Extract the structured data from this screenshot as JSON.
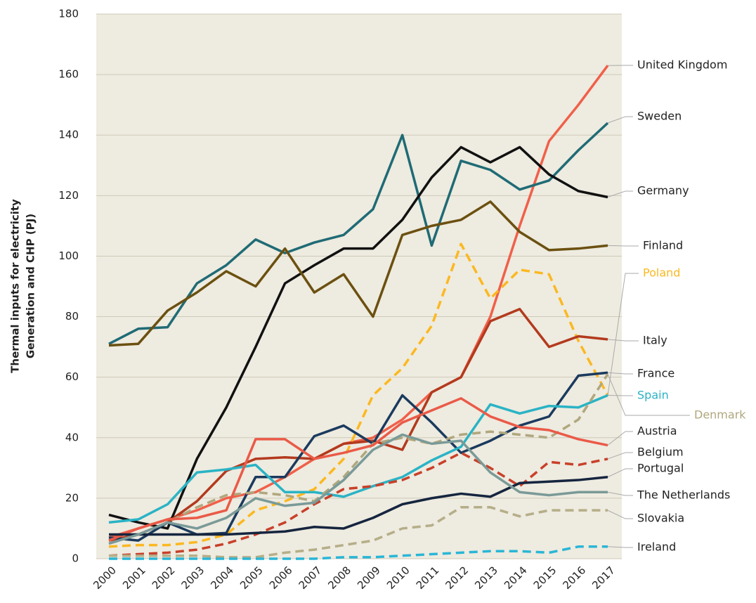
{
  "chart_data": {
    "type": "line",
    "y_label": [
      "Thermal inputs for electricity",
      "Generation and CHP (PJ)"
    ],
    "categories": [
      "2000",
      "2001",
      "2002",
      "2003",
      "2004",
      "2005",
      "2006",
      "2007",
      "2008",
      "2009",
      "2010",
      "2011",
      "2012",
      "2013",
      "2014",
      "2015",
      "2016",
      "2017"
    ],
    "ylim": [
      0,
      180
    ],
    "yticks": [
      0,
      20,
      40,
      60,
      80,
      100,
      120,
      140,
      160,
      180
    ],
    "grid": true,
    "series": [
      {
        "name": "United Kingdom",
        "color": "#f0604a",
        "values": [
          7,
          10,
          13,
          16,
          20,
          22,
          27,
          33,
          38,
          40,
          46,
          55,
          60,
          80,
          110,
          138,
          150,
          163
        ]
      },
      {
        "name": "Sweden",
        "color": "#1f6b75",
        "values": [
          71,
          76,
          76.5,
          91,
          97,
          105.5,
          101,
          104.5,
          107,
          115.5,
          140,
          103.5,
          131.5,
          128.5,
          122,
          125,
          135,
          144
        ]
      },
      {
        "name": "Germany",
        "color": "#111111",
        "values": [
          14.5,
          12,
          10,
          33,
          50,
          70,
          91,
          97,
          102.5,
          102.5,
          112,
          126,
          136,
          131,
          136,
          127,
          121.5,
          119.5
        ]
      },
      {
        "name": "Finland",
        "color": "#6b5010",
        "values": [
          70.5,
          71,
          82,
          88,
          95,
          90,
          102.5,
          88,
          94,
          80,
          107,
          110,
          112,
          118,
          108,
          102,
          102.5,
          103.5
        ]
      },
      {
        "name": "Poland",
        "color": "#fbb820",
        "dashed": true,
        "values": [
          4,
          4.5,
          4.5,
          5.5,
          8,
          16,
          19,
          23,
          33,
          54,
          63,
          77,
          104,
          86,
          95.5,
          94,
          72,
          54
        ]
      },
      {
        "name": "Italy",
        "color": "#b33a1e",
        "values": [
          6,
          8,
          12,
          19,
          29,
          33,
          33.5,
          33,
          38,
          39,
          36,
          55,
          60,
          78.5,
          82.5,
          70,
          73.5,
          72.5
        ]
      },
      {
        "name": "France",
        "color": "#1b3a5e",
        "values": [
          7,
          6,
          12,
          8,
          8.5,
          27,
          27,
          40.5,
          44,
          38,
          54,
          45,
          35,
          39,
          44,
          47,
          60.5,
          61.5
        ]
      },
      {
        "name": "Spain",
        "color": "#2ab3c5",
        "values": [
          12,
          13,
          18,
          28.5,
          29.5,
          31,
          22,
          22,
          20.5,
          24,
          27,
          32.5,
          37,
          51,
          48,
          50.5,
          50,
          54
        ]
      },
      {
        "name": "Denmark",
        "color": "#b0a77e",
        "dashed": true,
        "values": [
          5,
          8,
          12,
          17,
          21,
          22,
          21,
          19,
          27,
          38,
          40,
          38,
          41,
          42,
          41,
          40,
          46,
          61
        ]
      },
      {
        "name": "Austria",
        "color": "#ea5a48",
        "values": [
          6,
          10,
          13,
          13.5,
          16,
          39.5,
          39.5,
          33,
          35,
          37.5,
          45,
          49,
          53,
          47,
          43.5,
          42.5,
          39.5,
          37.5
        ]
      },
      {
        "name": "Belgium",
        "color": "#c8402a",
        "dashed": true,
        "values": [
          1,
          1.5,
          2,
          3,
          5,
          8,
          12,
          18,
          23,
          24,
          26,
          30,
          35,
          30,
          24,
          32,
          31,
          33
        ]
      },
      {
        "name": "Portugal",
        "color": "#15253f",
        "values": [
          8,
          8,
          8,
          8,
          8,
          8.5,
          9,
          10.5,
          10,
          13.5,
          18,
          20,
          21.5,
          20.5,
          25,
          25.5,
          26,
          27
        ]
      },
      {
        "name": "The Netherlands",
        "color": "#7a9a98",
        "values": [
          5,
          8,
          12,
          10,
          13.5,
          20,
          17.5,
          18.5,
          26,
          36,
          41,
          38,
          39,
          28.5,
          22,
          21,
          22,
          22
        ]
      },
      {
        "name": "Slovakia",
        "color": "#b5ae88",
        "dashed": true,
        "values": [
          1,
          1,
          1,
          1,
          0.5,
          0.5,
          2,
          3,
          4.5,
          6,
          10,
          11,
          17,
          17,
          14,
          16,
          16,
          16
        ]
      },
      {
        "name": "Ireland",
        "color": "#29b6d6",
        "dashed": true,
        "values": [
          0,
          0,
          0,
          0,
          0,
          0,
          0,
          0,
          0.5,
          0.5,
          1,
          1.5,
          2,
          2.5,
          2.5,
          2,
          4,
          4
        ]
      }
    ]
  }
}
